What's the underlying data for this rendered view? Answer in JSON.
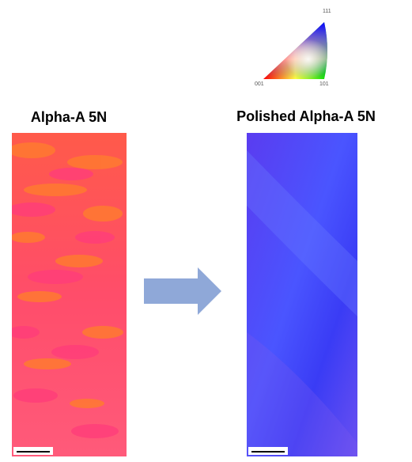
{
  "figure": {
    "ipf_key": {
      "top_label": "111",
      "left_label": "001",
      "right_label": "101"
    },
    "panels": [
      {
        "title": "Alpha-A 5N"
      },
      {
        "title": "Polished Alpha-A 5N"
      }
    ]
  }
}
